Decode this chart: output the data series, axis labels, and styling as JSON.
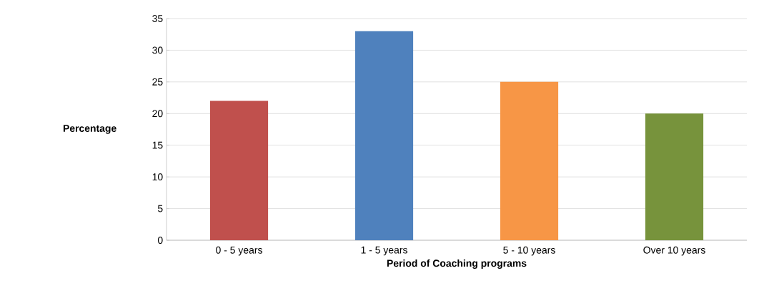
{
  "chart_data": {
    "type": "bar",
    "xlabel": "Period of Coaching programs",
    "ylabel": "Percentage",
    "categories": [
      "0 - 5 years",
      "1 - 5 years",
      "5 - 10 years",
      "Over 10 years"
    ],
    "values": [
      22,
      33,
      25,
      20
    ],
    "colors": [
      "#c0504d",
      "#4f81bd",
      "#f79646",
      "#77933c"
    ],
    "ylim": [
      0,
      35
    ],
    "yticks": [
      0,
      5,
      10,
      15,
      20,
      25,
      30,
      35
    ],
    "grid": "y"
  }
}
